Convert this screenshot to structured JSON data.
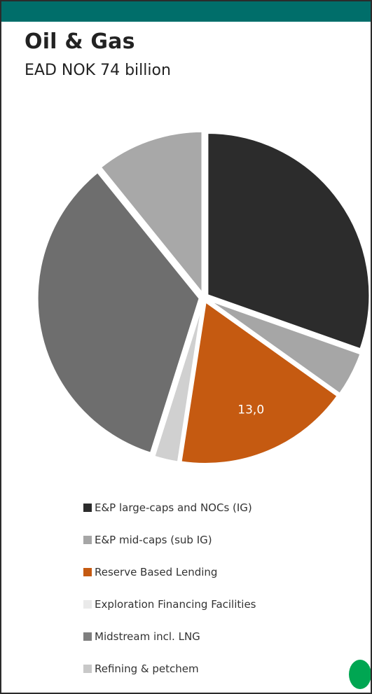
{
  "title": "Oil & Gas",
  "subtitle": "EAD NOK 74 billion",
  "chart_data": {
    "type": "pie",
    "title": "Oil & Gas",
    "subtitle": "EAD NOK 74 billion",
    "labels": [
      "E&P large-caps and NOCs (IG)",
      "E&P mid-caps (sub IG)",
      "Reserve Based Lending",
      "Exploration Financing Facilities",
      "Midstream incl. LNG",
      "Refining & petchem"
    ],
    "slice_order": [
      "E&P large-caps and NOCs (IG)",
      "E&P mid-caps (sub IG)",
      "Reserve Based Lending",
      "Exploration Financing Facilities",
      "Midstream incl. LNG",
      "Refining & petchem"
    ],
    "values": [
      22.5,
      3.3,
      13.0,
      1.8,
      25.4,
      8.0
    ],
    "colors": [
      "#2c2c2c",
      "#a6a6a6",
      "#c55a11",
      "#d0d0d0",
      "#6e6e6e",
      "#a8a8a8"
    ],
    "legend_colors": [
      "#2c2c2c",
      "#a6a6a6",
      "#c55a11",
      "#eaeaea",
      "#7f7f7f",
      "#c8c8c8"
    ],
    "data_labels": [
      {
        "slice": "Reserve Based Lending",
        "text": "13,0",
        "color": "#ffffff"
      }
    ],
    "legend_placement": "bottom"
  }
}
